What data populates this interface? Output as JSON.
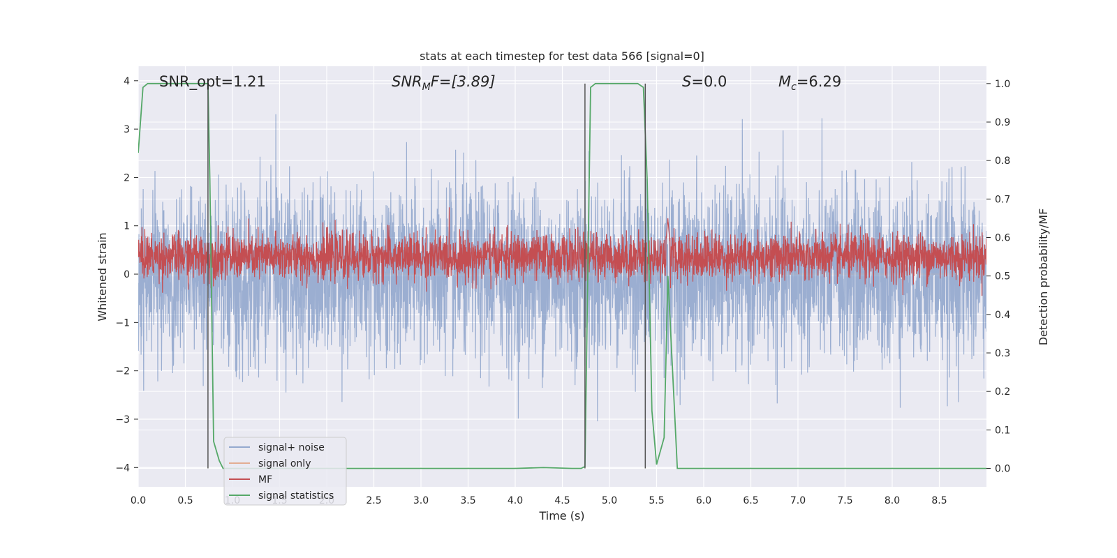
{
  "chart_data": {
    "type": "line",
    "title": "stats at each timestep for test data 566 [signal=0]",
    "xlabel": "Time (s)",
    "ylabel_left": "Whitened strain",
    "ylabel_right": "Detection probability/MF",
    "xlim": [
      0,
      9.0
    ],
    "ylim_left": [
      -4.4,
      4.3
    ],
    "ylim_right": [
      -0.048,
      1.045
    ],
    "x_ticks": [
      0,
      0.5,
      1,
      1.5,
      2,
      2.5,
      3,
      3.5,
      4,
      4.5,
      5,
      5.5,
      6,
      6.5,
      7,
      7.5,
      8,
      8.5
    ],
    "x_tick_labels": [
      "0.0",
      "0.5",
      "1.0",
      "1.5",
      "2.0",
      "2.5",
      "3.0",
      "3.5",
      "4.0",
      "4.5",
      "5.0",
      "5.5",
      "6.0",
      "6.5",
      "7.0",
      "7.5",
      "8.0",
      "8.5"
    ],
    "y_left_ticks": [
      -4,
      -3,
      -2,
      -1,
      0,
      1,
      2,
      3,
      4
    ],
    "y_left_tick_labels": [
      "−4",
      "−3",
      "−2",
      "−1",
      "0",
      "1",
      "2",
      "3",
      "4"
    ],
    "y_right_ticks": [
      0.0,
      0.1,
      0.2,
      0.3,
      0.4,
      0.5,
      0.6,
      0.7,
      0.8,
      0.9,
      1.0
    ],
    "y_right_tick_labels": [
      "0.0",
      "0.1",
      "0.2",
      "0.3",
      "0.4",
      "0.5",
      "0.6",
      "0.7",
      "0.8",
      "0.9",
      "1.0"
    ],
    "grid": true,
    "legend_position": "lower-left",
    "colors": {
      "background": "#eaeaf2",
      "grid": "#ffffff",
      "noise": "#4c72b0",
      "signal_only": "#dd8452",
      "mf": "#c44e52",
      "stats": "#55a868",
      "vlines": "#555555"
    },
    "annotations": {
      "snr_opt": "SNR_opt=1.21",
      "snr_mf_main": "SNR",
      "snr_mf_sub": "M",
      "snr_mf_rest": "F=[3.89]",
      "s_value_var": "S",
      "s_value_rest": "=0.0",
      "mc_var": "M",
      "mc_sub": "c",
      "mc_rest": "=6.29"
    },
    "vertical_lines_x": [
      0.74,
      4.74,
      5.38
    ],
    "series": [
      {
        "name": "signal+ noise",
        "axis": "left",
        "style": "noise",
        "sample_rate_hz": 400,
        "abs_max": 3.4,
        "mean_level": 0.0,
        "typical_std": 0.9
      },
      {
        "name": "signal only",
        "axis": "left",
        "style": "flat",
        "values": [
          0,
          0
        ]
      },
      {
        "name": "MF",
        "axis": "right",
        "style": "noise",
        "sample_rate_hz": 400,
        "mean_level": 0.55,
        "typical_std": 0.03,
        "peak": {
          "x": 5.62,
          "y": 0.65
        }
      },
      {
        "name": "signal statistics",
        "axis": "right",
        "x": [
          0.0,
          0.05,
          0.1,
          0.7,
          0.74,
          0.76,
          0.8,
          0.86,
          0.9,
          1.0,
          4.0,
          4.3,
          4.6,
          4.7,
          4.74,
          4.77,
          4.8,
          4.85,
          5.3,
          5.36,
          5.4,
          5.45,
          5.5,
          5.58,
          5.62,
          5.67,
          5.72,
          5.8,
          6.0,
          9.0
        ],
        "y": [
          0.82,
          0.99,
          1.0,
          1.0,
          1.0,
          0.75,
          0.07,
          0.02,
          0.0,
          0.0,
          0.0,
          0.002,
          0.0,
          0.0,
          0.005,
          0.5,
          0.99,
          1.0,
          1.0,
          0.99,
          0.75,
          0.15,
          0.01,
          0.08,
          0.5,
          0.25,
          0.0,
          0.0,
          0.0,
          0.0
        ]
      }
    ]
  }
}
